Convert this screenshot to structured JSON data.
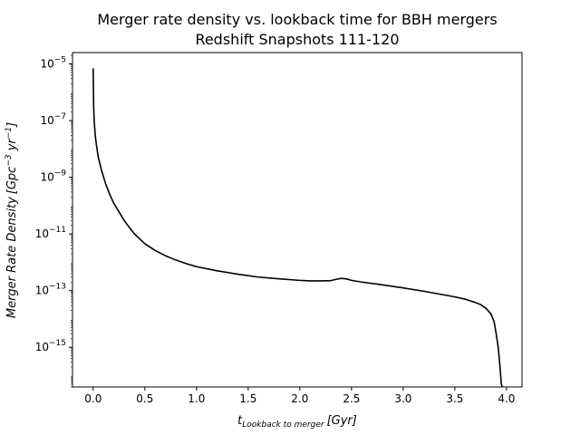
{
  "chart_data": {
    "type": "line",
    "title_lines": [
      "Merger rate density vs. lookback time for BBH mergers",
      "Redshift Snapshots 111-120"
    ],
    "xlabel": "t_{Lookback to merger} [Gyr]",
    "xlabel_parts": {
      "main": "t",
      "sub": "Lookback to merger",
      "unit": "[Gyr]"
    },
    "ylabel": "Merger Rate Density [Gpc^{-3} yr^{-1}]",
    "ylabel_parts": {
      "main": "Merger Rate Density",
      "unit_prefix": "[Gpc",
      "exp": "−3",
      "unit_mid": " yr",
      "exp2": "−1",
      "unit_suffix": "]"
    },
    "x_ticks": [
      "0.0",
      "0.5",
      "1.0",
      "1.5",
      "2.0",
      "2.5",
      "3.0",
      "3.5",
      "4.0"
    ],
    "y_ticks": [
      {
        "base": "10",
        "exp": "−5",
        "value": 1e-05
      },
      {
        "base": "10",
        "exp": "−7",
        "value": 1e-07
      },
      {
        "base": "10",
        "exp": "−9",
        "value": 1e-09
      },
      {
        "base": "10",
        "exp": "−11",
        "value": 1e-11
      },
      {
        "base": "10",
        "exp": "−13",
        "value": 1e-13
      },
      {
        "base": "10",
        "exp": "−15",
        "value": 1e-15
      }
    ],
    "xlim": [
      -0.2,
      4.15
    ],
    "ylim_log10": [
      -16.4,
      -4.6
    ],
    "y_scale": "log",
    "grid": false,
    "line_color": "#000000",
    "series": [
      {
        "x": [
          0.0,
          0.005,
          0.01,
          0.02,
          0.03,
          0.05,
          0.08,
          0.12,
          0.16,
          0.2,
          0.25,
          0.3,
          0.35,
          0.4,
          0.5,
          0.6,
          0.7,
          0.8,
          0.9,
          1.0,
          1.2,
          1.4,
          1.6,
          1.8,
          2.0,
          2.1,
          2.2,
          2.3,
          2.35,
          2.4,
          2.45,
          2.5,
          2.6,
          2.8,
          3.0,
          3.2,
          3.4,
          3.5,
          3.6,
          3.7,
          3.75,
          3.8,
          3.85,
          3.88,
          3.9,
          3.92,
          3.93,
          3.94,
          3.95,
          3.96
        ],
        "y": [
          7e-06,
          3e-07,
          1e-07,
          3e-08,
          1.5e-08,
          5e-09,
          1.8e-09,
          6e-10,
          2.5e-10,
          1.2e-10,
          6e-11,
          3e-11,
          1.7e-11,
          1e-11,
          4.5e-12,
          2.6e-12,
          1.7e-12,
          1.2e-12,
          9e-13,
          7e-13,
          5e-13,
          3.8e-13,
          3e-13,
          2.6e-13,
          2.3e-13,
          2.2e-13,
          2.2e-13,
          2.25e-13,
          2.5e-13,
          2.7e-13,
          2.6e-13,
          2.3e-13,
          2e-13,
          1.6e-13,
          1.25e-13,
          9.5e-14,
          7e-14,
          6e-14,
          5e-14,
          3.8e-14,
          3.2e-14,
          2.4e-14,
          1.5e-14,
          8e-15,
          3e-15,
          1e-15,
          4e-16,
          1.5e-16,
          5e-17,
          1e-17
        ]
      }
    ]
  }
}
